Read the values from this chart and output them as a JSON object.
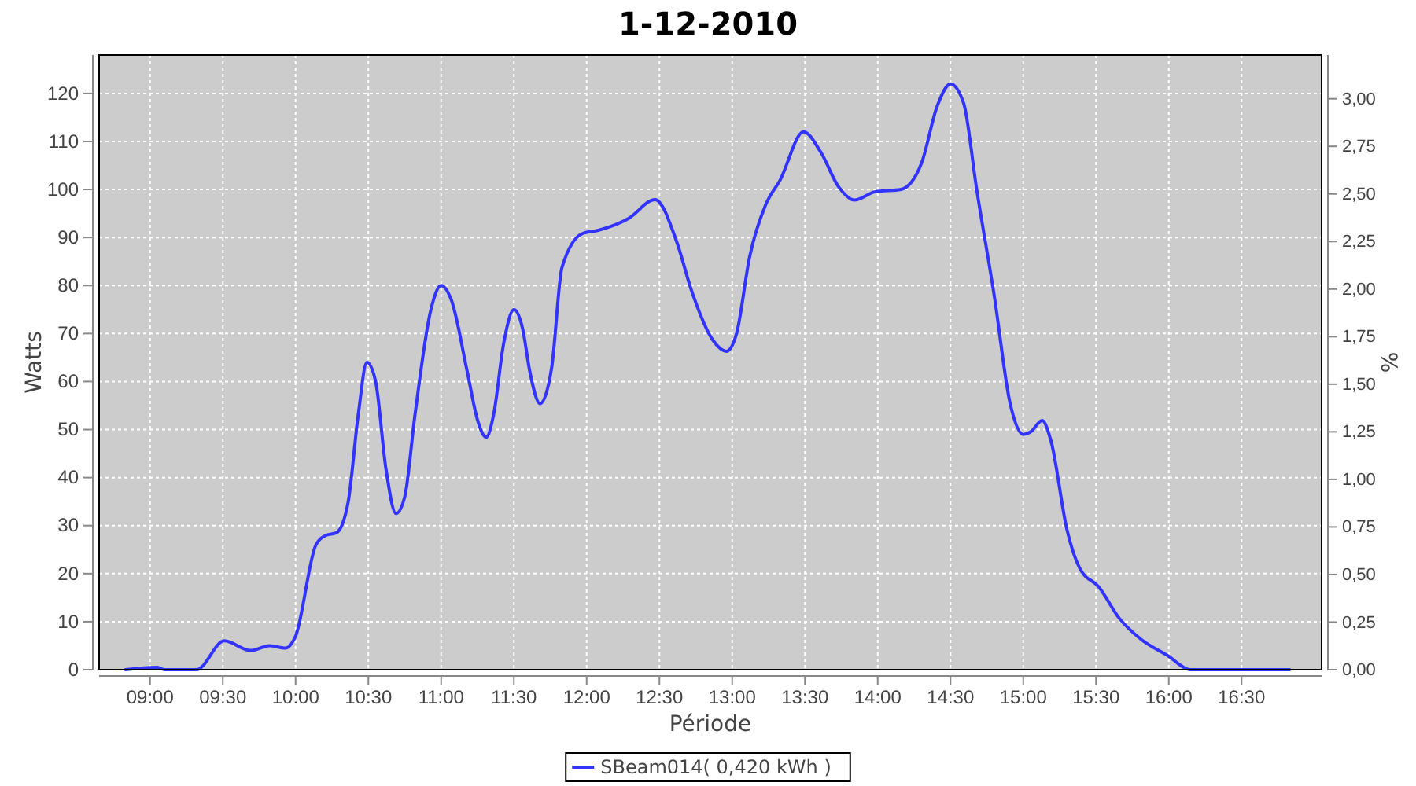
{
  "chart_data": {
    "type": "line",
    "title": "1-12-2010",
    "xlabel": "Période",
    "ylabel": "Watts",
    "y2label": "%",
    "xlim": [
      8.65,
      17.05
    ],
    "xticks": [
      {
        "value": 9,
        "label": "09:00"
      },
      {
        "value": 9.5,
        "label": "09:30"
      },
      {
        "value": 10,
        "label": "10:00"
      },
      {
        "value": 10.5,
        "label": "10:30"
      },
      {
        "value": 11,
        "label": "11:00"
      },
      {
        "value": 11.5,
        "label": "11:30"
      },
      {
        "value": 12,
        "label": "12:00"
      },
      {
        "value": 12.5,
        "label": "12:30"
      },
      {
        "value": 13,
        "label": "13:00"
      },
      {
        "value": 13.5,
        "label": "13:30"
      },
      {
        "value": 14,
        "label": "14:00"
      },
      {
        "value": 14.5,
        "label": "14:30"
      },
      {
        "value": 15,
        "label": "15:00"
      },
      {
        "value": 15.5,
        "label": "15:30"
      },
      {
        "value": 16,
        "label": "16:00"
      },
      {
        "value": 16.5,
        "label": "16:30"
      }
    ],
    "ylim": [
      0,
      128
    ],
    "yticks": [
      0,
      10,
      20,
      30,
      40,
      50,
      60,
      70,
      80,
      90,
      100,
      110,
      120
    ],
    "y2lim": [
      0,
      3.23
    ],
    "y2ticks": [
      {
        "value": 0,
        "label": "0,00"
      },
      {
        "value": 0.25,
        "label": "0,25"
      },
      {
        "value": 0.5,
        "label": "0,50"
      },
      {
        "value": 0.75,
        "label": "0,75"
      },
      {
        "value": 1,
        "label": "1,00"
      },
      {
        "value": 1.25,
        "label": "1,25"
      },
      {
        "value": 1.5,
        "label": "1,50"
      },
      {
        "value": 1.75,
        "label": "1,75"
      },
      {
        "value": 2,
        "label": "2,00"
      },
      {
        "value": 2.25,
        "label": "2,25"
      },
      {
        "value": 2.5,
        "label": "2,50"
      },
      {
        "value": 2.75,
        "label": "2,75"
      },
      {
        "value": 3,
        "label": "3,00"
      }
    ],
    "grid": true,
    "legend": "bottom",
    "marker": "none",
    "line_style": "solid",
    "series": [
      {
        "name": "SBeam014( 0,420 kWh )",
        "color": "#3333ff",
        "x": [
          8.83,
          9.05,
          9.1,
          9.32,
          9.51,
          9.69,
          9.82,
          9.93,
          10.0,
          10.14,
          10.21,
          10.28,
          10.36,
          10.43,
          10.49,
          10.55,
          10.62,
          10.69,
          10.75,
          10.82,
          10.93,
          11.0,
          11.07,
          11.18,
          11.25,
          11.31,
          11.36,
          11.43,
          11.5,
          11.56,
          11.61,
          11.68,
          11.76,
          11.83,
          11.97,
          12.08,
          12.29,
          12.47,
          12.62,
          12.72,
          12.87,
          12.96,
          13.03,
          13.12,
          13.23,
          13.33,
          13.49,
          13.61,
          13.73,
          13.84,
          13.98,
          14.16,
          14.3,
          14.41,
          14.5,
          14.59,
          14.68,
          14.8,
          14.91,
          15.0,
          15.05,
          15.13,
          15.19,
          15.3,
          15.39,
          15.52,
          15.66,
          15.81,
          15.99,
          16.15,
          16.83
        ],
        "values": [
          0,
          0.5,
          0,
          0,
          6,
          4,
          5,
          4.5,
          7,
          26,
          28,
          28.5,
          34.7,
          53,
          64,
          60,
          42,
          32.5,
          36,
          53,
          75,
          80,
          77,
          62,
          52,
          48.4,
          53,
          68,
          75,
          71,
          62,
          55.4,
          63,
          83.7,
          90.8,
          91.5,
          94,
          97.9,
          89,
          79,
          68.5,
          66.3,
          70,
          86,
          96.8,
          102,
          112,
          107.7,
          100.6,
          97.8,
          99.5,
          100,
          105.4,
          117.5,
          122,
          118,
          100,
          78,
          55.4,
          49,
          49.5,
          51.9,
          47.7,
          29.2,
          21,
          17.2,
          10.7,
          6.3,
          3,
          0,
          0
        ]
      }
    ]
  }
}
